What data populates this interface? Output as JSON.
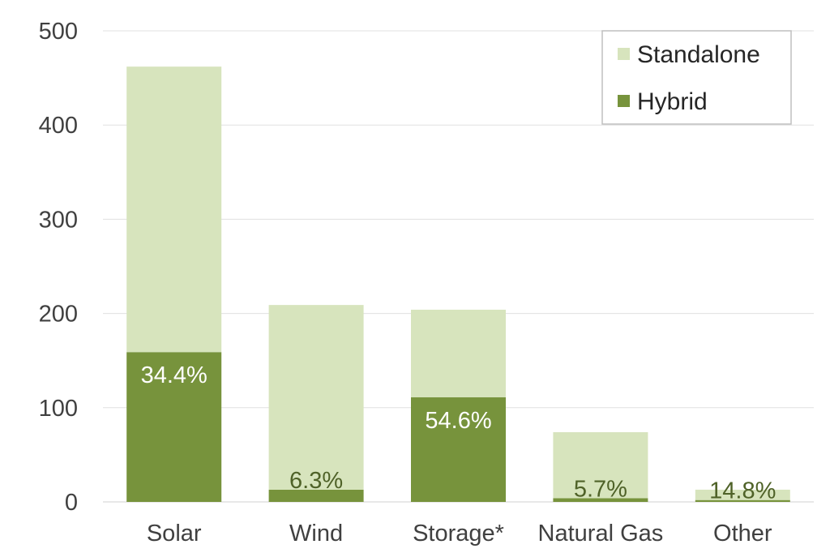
{
  "chart_data": {
    "type": "bar",
    "stacked": true,
    "categories": [
      "Solar",
      "Wind",
      "Storage*",
      "Natural Gas",
      "Other"
    ],
    "series": [
      {
        "name": "Hybrid",
        "values": [
          159,
          13,
          111,
          4,
          2
        ],
        "color": "#77933c"
      },
      {
        "name": "Standalone",
        "values": [
          303,
          196,
          93,
          70,
          11
        ],
        "color": "#d7e4bd"
      }
    ],
    "totals": [
      462,
      209,
      204,
      74,
      13
    ],
    "data_labels": [
      "34.4%",
      "6.3%",
      "54.6%",
      "5.7%",
      "14.8%"
    ],
    "data_label_colors": [
      "#ffffff",
      "#4f6228",
      "#ffffff",
      "#4f6228",
      "#4f6228"
    ],
    "ylim": [
      0,
      500
    ],
    "yticks": [
      0,
      100,
      200,
      300,
      400,
      500
    ],
    "grid": true,
    "legend_position": "top-right",
    "legend_order": [
      "Standalone",
      "Hybrid"
    ],
    "title": "",
    "xlabel": "",
    "ylabel": ""
  }
}
